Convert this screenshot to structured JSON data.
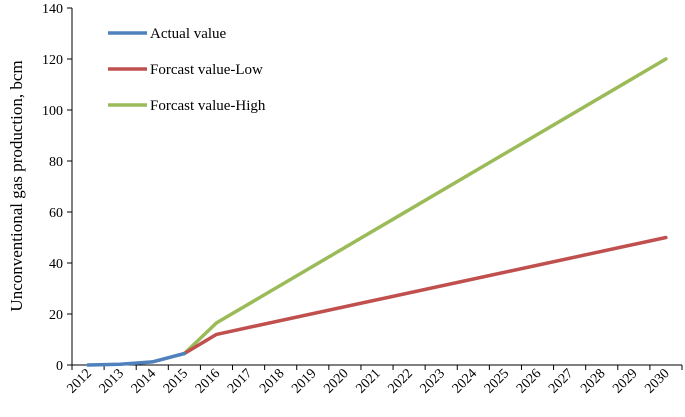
{
  "chart_data": {
    "type": "line",
    "title": "",
    "xlabel": "",
    "ylabel": "Unconventional gas production, bcm",
    "ylim": [
      0,
      140
    ],
    "yticks": [
      0,
      20,
      40,
      60,
      80,
      100,
      120,
      140
    ],
    "categories": [
      "2012",
      "2013",
      "2014",
      "2015",
      "2016",
      "2017",
      "2018",
      "2019",
      "2020",
      "2021",
      "2022",
      "2023",
      "2024",
      "2025",
      "2026",
      "2027",
      "2028",
      "2029",
      "2030"
    ],
    "grid": false,
    "legend_position": "top-left",
    "series": [
      {
        "name": "Actual value",
        "color": "#4f81bd",
        "points": [
          {
            "x": 2012,
            "y": 0.0
          },
          {
            "x": 2013,
            "y": 0.3
          },
          {
            "x": 2014,
            "y": 1.2
          },
          {
            "x": 2015,
            "y": 4.5
          }
        ]
      },
      {
        "name": "Forcast value-Low",
        "color": "#c0504d",
        "points": [
          {
            "x": 2015,
            "y": 4.5
          },
          {
            "x": 2016,
            "y": 12.0
          },
          {
            "x": 2030,
            "y": 50.0
          }
        ]
      },
      {
        "name": "Forcast value-High",
        "color": "#9bbb59",
        "points": [
          {
            "x": 2015,
            "y": 4.5
          },
          {
            "x": 2016,
            "y": 16.5
          },
          {
            "x": 2030,
            "y": 120.0
          }
        ]
      }
    ]
  }
}
